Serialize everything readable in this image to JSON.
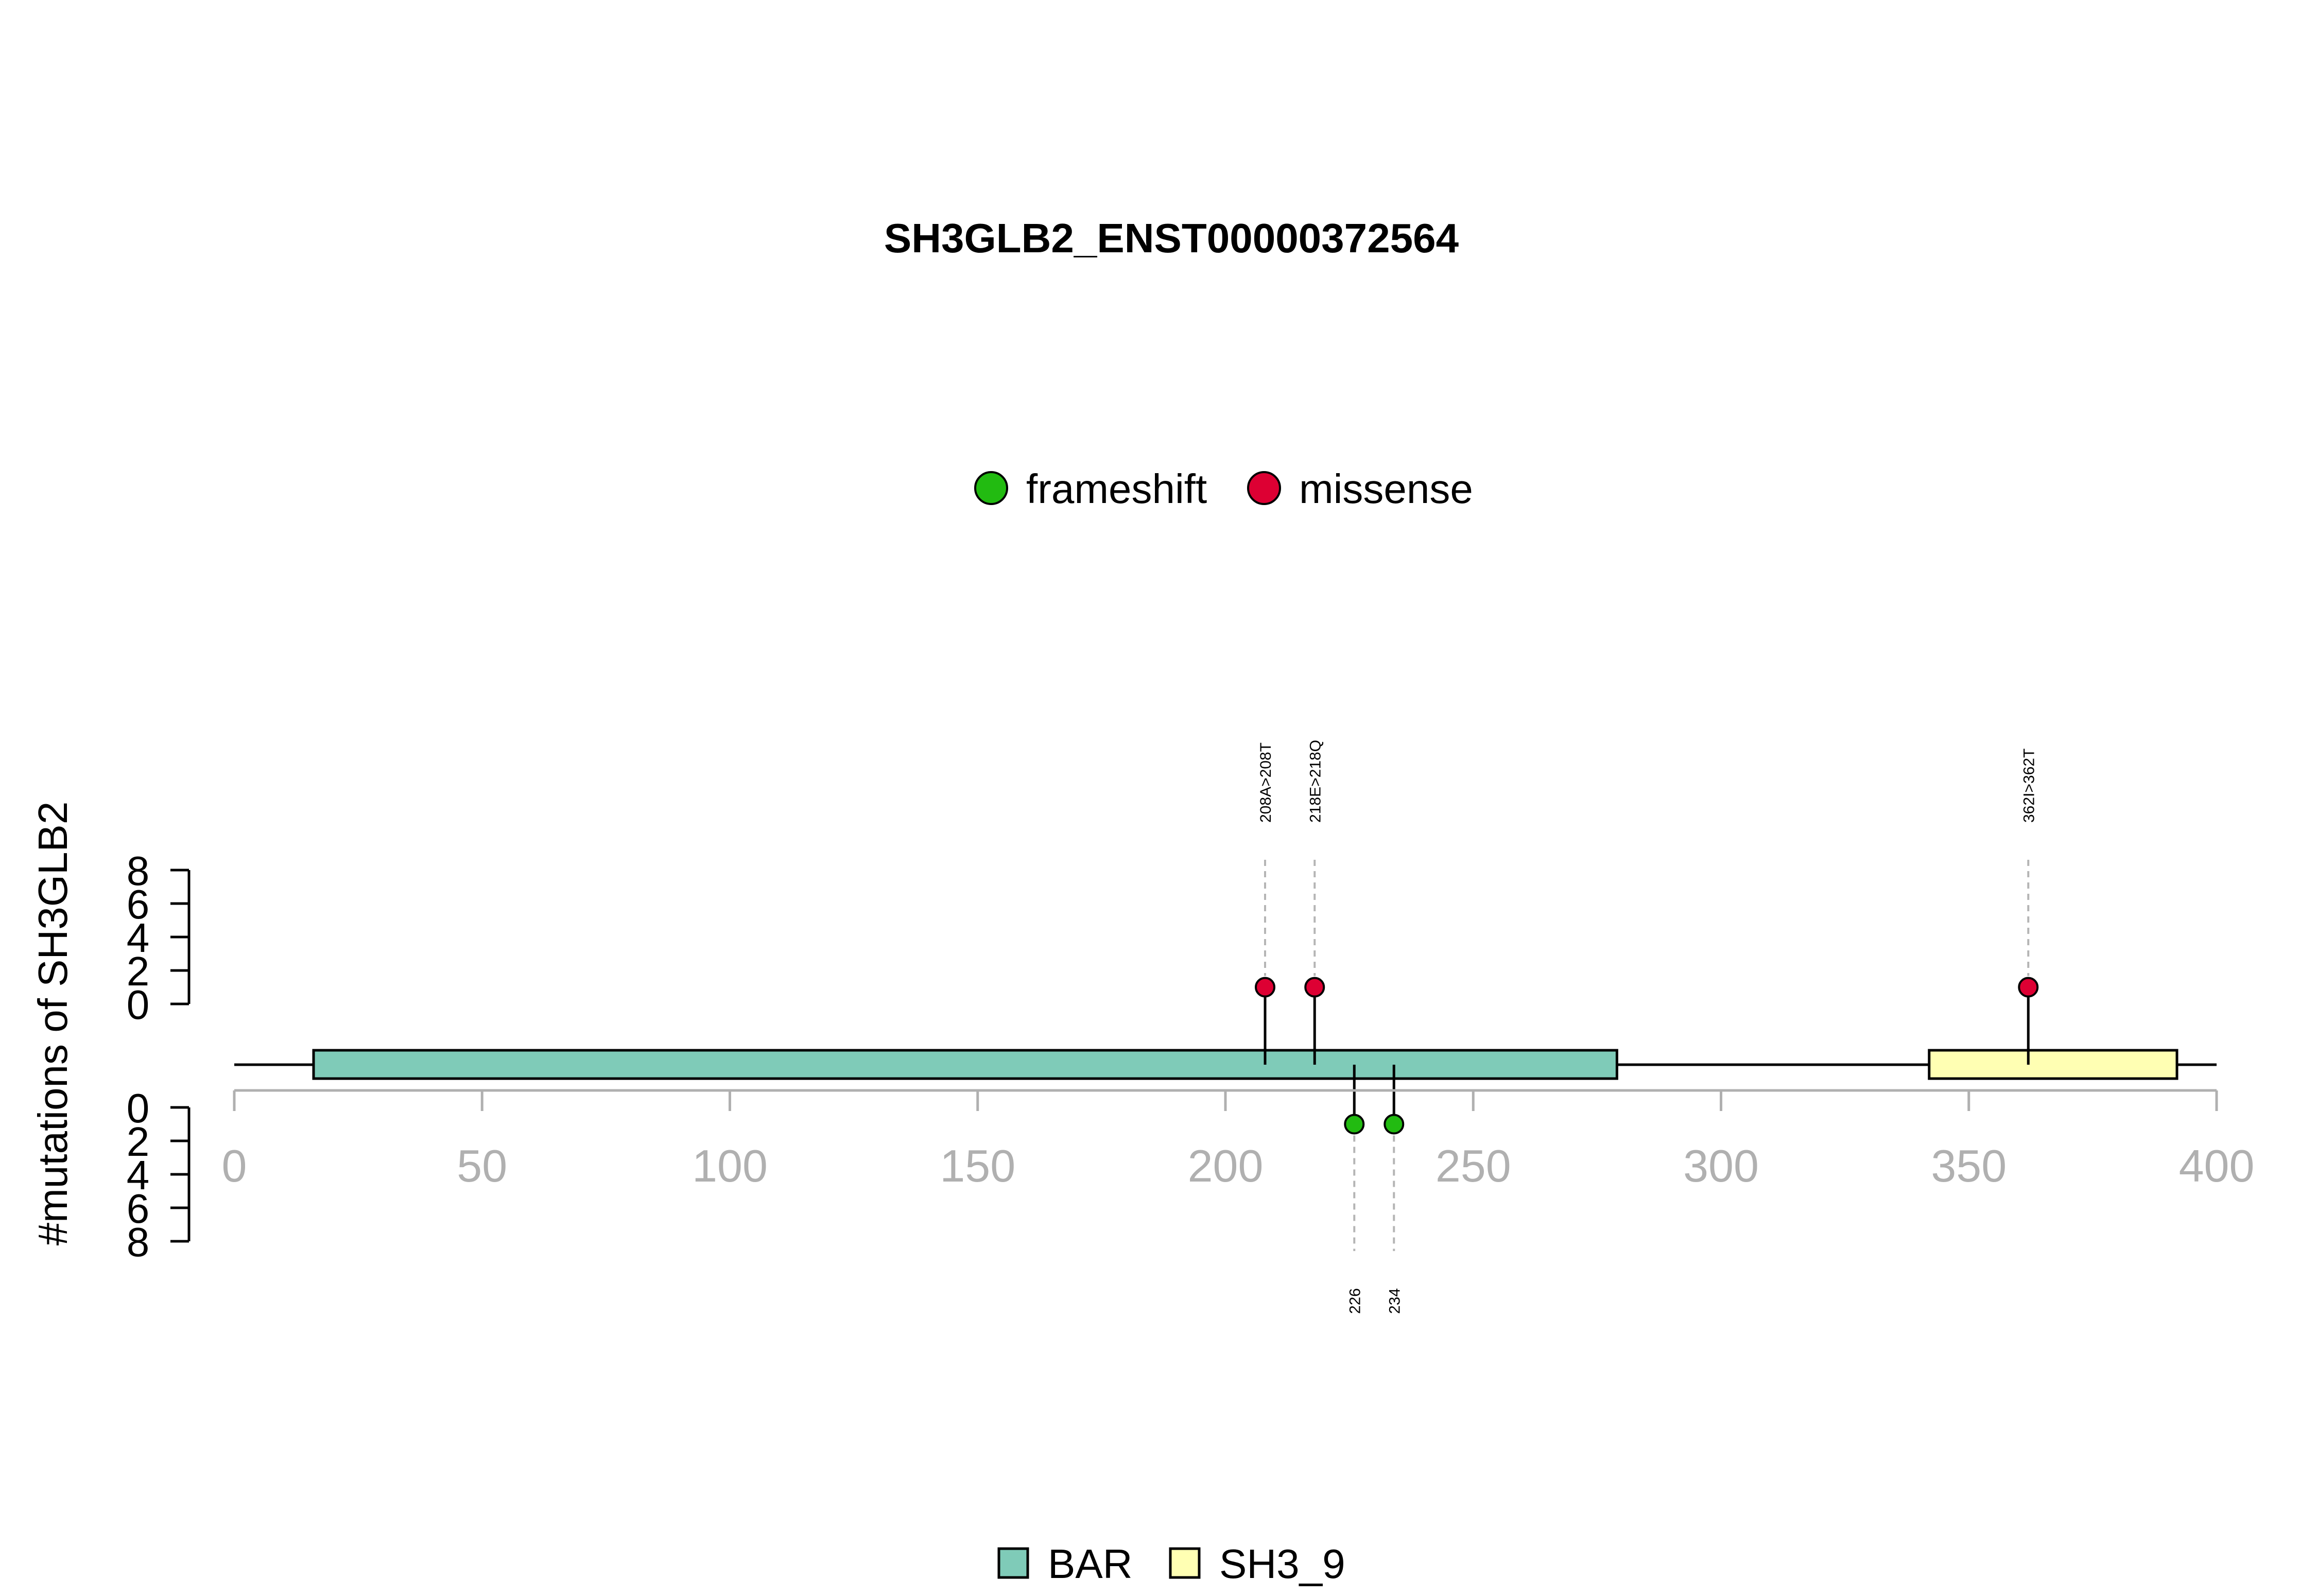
{
  "chart_data": {
    "type": "lollipop",
    "title": "SH3GLB2_ENST00000372564",
    "ylabel": "#mutations of SH3GLB2",
    "xlim": [
      0,
      400
    ],
    "x_ticks": [
      0,
      50,
      100,
      150,
      200,
      250,
      300,
      350,
      400
    ],
    "count_ticks": [
      0,
      2,
      4,
      6,
      8
    ],
    "protein_length": 400,
    "mutation_types": [
      {
        "name": "frameshift",
        "color": "#22bb11"
      },
      {
        "name": "missense",
        "color": "#dd0033"
      }
    ],
    "domains": [
      {
        "name": "BAR",
        "start": 16,
        "end": 279,
        "color": "#7fcbb8"
      },
      {
        "name": "SH3_9",
        "start": 342,
        "end": 392,
        "color": "#ffffb3"
      }
    ],
    "mutations": [
      {
        "position": 208,
        "label": "208A>208T",
        "type": "missense",
        "count": 1,
        "side": "top"
      },
      {
        "position": 218,
        "label": "218E>218Q",
        "type": "missense",
        "count": 1,
        "side": "top"
      },
      {
        "position": 362,
        "label": "362I>362T",
        "type": "missense",
        "count": 1,
        "side": "top"
      },
      {
        "position": 226,
        "label": "226",
        "type": "frameshift",
        "count": 1,
        "side": "bottom"
      },
      {
        "position": 234,
        "label": "234",
        "type": "frameshift",
        "count": 1,
        "side": "bottom"
      }
    ]
  }
}
